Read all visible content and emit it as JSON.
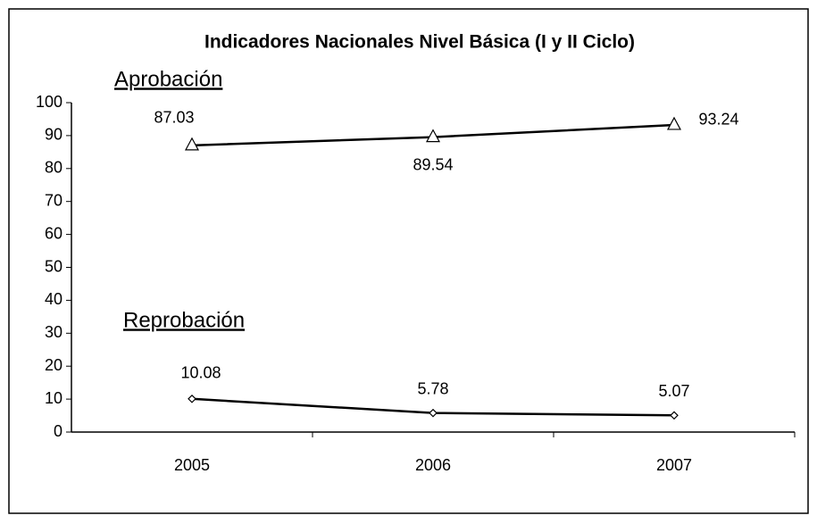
{
  "chart_data": {
    "type": "line",
    "title": "Indicadores Nacionales Nivel Básica (I y II Ciclo)",
    "categories": [
      "2005",
      "2006",
      "2007"
    ],
    "series": [
      {
        "name": "Aprobación",
        "color": "#000000",
        "marker": "triangle",
        "values": [
          87.03,
          89.54,
          93.24
        ]
      },
      {
        "name": "Reprobación",
        "color": "#000000",
        "marker": "diamond",
        "values": [
          10.08,
          5.78,
          5.07
        ]
      }
    ],
    "ylim": [
      0,
      100
    ],
    "yticks": [
      0,
      10,
      20,
      30,
      40,
      50,
      60,
      70,
      80,
      90,
      100
    ],
    "grid": false
  }
}
